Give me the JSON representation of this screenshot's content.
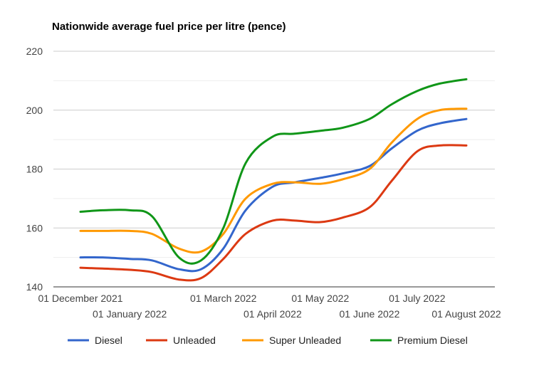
{
  "chart_data": {
    "type": "line",
    "title": "Nationwide average fuel price per litre (pence)",
    "xlabel": "",
    "ylabel": "",
    "ylim": [
      140,
      220
    ],
    "yticks": [
      140,
      160,
      180,
      200,
      220
    ],
    "grid": true,
    "legend_position": "bottom",
    "x": [
      "2021-12-01",
      "2021-12-15",
      "2022-01-01",
      "2022-01-15",
      "2022-02-01",
      "2022-02-15",
      "2022-03-01",
      "2022-03-15",
      "2022-04-01",
      "2022-04-15",
      "2022-05-01",
      "2022-05-15",
      "2022-06-01",
      "2022-06-15",
      "2022-07-01",
      "2022-07-15",
      "2022-08-01"
    ],
    "xticks": [
      {
        "date": "2021-12-01",
        "label": "01 December 2021"
      },
      {
        "date": "2022-01-01",
        "label": "01 January 2022"
      },
      {
        "date": "2022-03-01",
        "label": "01 March 2022"
      },
      {
        "date": "2022-04-01",
        "label": "01 April 2022"
      },
      {
        "date": "2022-05-01",
        "label": "01 May 2022"
      },
      {
        "date": "2022-06-01",
        "label": "01 June 2022"
      },
      {
        "date": "2022-07-01",
        "label": "01 July 2022"
      },
      {
        "date": "2022-08-01",
        "label": "01 August 2022"
      }
    ],
    "series": [
      {
        "name": "Diesel",
        "color": "#3366cc",
        "values": [
          150,
          150,
          149.5,
          149,
          146,
          146,
          153,
          166,
          174,
          175.5,
          177,
          178.5,
          181,
          187,
          193,
          195.5,
          197
        ]
      },
      {
        "name": "Unleaded",
        "color": "#dc3912",
        "values": [
          146.5,
          146.2,
          145.8,
          145,
          142.5,
          143,
          149.5,
          158,
          162.5,
          162.5,
          162,
          163.5,
          167,
          176,
          186,
          188,
          188
        ]
      },
      {
        "name": "Super Unleaded",
        "color": "#ff9900",
        "values": [
          159,
          159,
          159,
          158,
          153,
          152,
          158,
          170,
          175,
          175.5,
          175,
          176.5,
          180,
          189,
          197,
          200,
          200.5
        ]
      },
      {
        "name": "Premium Diesel",
        "color": "#109618",
        "values": [
          165.5,
          166,
          166,
          164,
          150,
          149,
          160,
          182,
          191,
          192,
          193,
          194,
          197,
          202,
          206.5,
          209,
          210.5
        ]
      }
    ]
  }
}
